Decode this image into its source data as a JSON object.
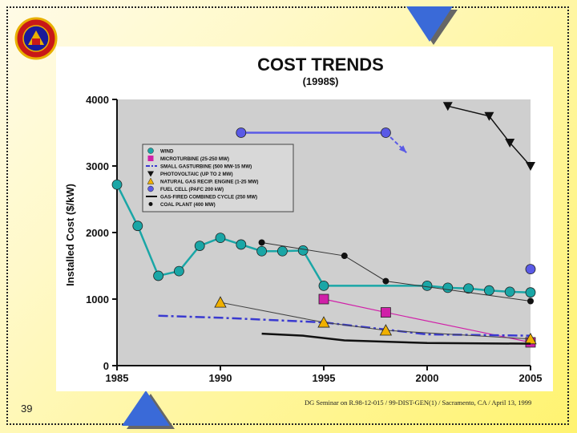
{
  "slide": {
    "number": "39",
    "footer": "DG Seminar on R.98-12-015 / 99-DIST-GEN(1) / Sacramento, CA / April 13, 1999"
  },
  "colors": {
    "wind": "#1aa6a6",
    "microturbine": "#d020a8",
    "small_gas_turbine": "#3a3ad0",
    "photovoltaic": "#111111",
    "natural_gas_recip": "#f0b000",
    "fuel_cell": "#5a5ae6",
    "combined_cycle": "#111111",
    "coal": "#111111",
    "plot_bg": "#cfcfcf"
  },
  "chart_data": {
    "type": "line",
    "title": "COST TRENDS",
    "subtitle": "(1998$)",
    "xlabel": "",
    "ylabel": "Installed Cost ($/kW)",
    "xlim": [
      1985,
      2005
    ],
    "ylim": [
      0,
      4000
    ],
    "x_ticks": [
      "1985",
      "1990",
      "1995",
      "2000",
      "2005"
    ],
    "y_ticks": [
      "0",
      "1000",
      "2000",
      "3000",
      "4000"
    ],
    "legend_position": "upper-left",
    "series": [
      {
        "key": "wind",
        "name": "WIND",
        "marker": "circle",
        "x": [
          1985,
          1986,
          1987,
          1988,
          1989,
          1990,
          1991,
          1992,
          1993,
          1994,
          1995,
          2000,
          2001,
          2002,
          2003,
          2004,
          2005
        ],
        "y": [
          2720,
          2100,
          1350,
          1420,
          1800,
          1920,
          1820,
          1720,
          1720,
          1730,
          1200,
          1200,
          1170,
          1160,
          1130,
          1110,
          1100
        ]
      },
      {
        "key": "microturbine",
        "name": "MICROTURBINE (25-250 MW)",
        "marker": "square",
        "x": [
          1995,
          1998,
          2005
        ],
        "y": [
          1000,
          800,
          350
        ]
      },
      {
        "key": "small_gas_turbine",
        "name": "SMALL GASTURBINE (500 MW-15 MW)",
        "marker": "none",
        "dash": "dashdot",
        "x": [
          1987,
          1990,
          1995,
          2000,
          2005
        ],
        "y": [
          750,
          720,
          650,
          470,
          450
        ]
      },
      {
        "key": "photovoltaic",
        "name": "PHOTOVOLTAIC (UP TO 2 MW)",
        "marker": "triangle-down",
        "x": [
          2001,
          2003,
          2004,
          2005
        ],
        "y": [
          3900,
          3750,
          3350,
          3000
        ]
      },
      {
        "key": "natural_gas_recip",
        "name": "NATURAL GAS RECIP. ENGINE (1-25 MW)",
        "marker": "triangle-up",
        "x": [
          1990,
          1995,
          1998,
          2005
        ],
        "y": [
          950,
          650,
          530,
          400
        ]
      },
      {
        "key": "fuel_cell",
        "name": "FUEL CELL (PAFC 200 kW)",
        "marker": "circle",
        "x": [
          1991,
          1998,
          1999
        ],
        "y": [
          3500,
          3500,
          3200
        ]
      },
      {
        "key": "fuel_cell_2005",
        "name": "",
        "marker": "circle",
        "x": [
          2005
        ],
        "y": [
          1450
        ]
      },
      {
        "key": "combined_cycle",
        "name": "GAS-FIRED COMBINED CYCLE (250 MW)",
        "marker": "none",
        "x": [
          1992,
          1994,
          1996,
          2000,
          2005
        ],
        "y": [
          480,
          450,
          380,
          340,
          330
        ]
      },
      {
        "key": "coal",
        "name": "COAL PLANT (400 MW)",
        "marker": "dot",
        "x": [
          1992,
          1996,
          1998,
          2005
        ],
        "y": [
          1850,
          1650,
          1270,
          970
        ]
      }
    ]
  }
}
